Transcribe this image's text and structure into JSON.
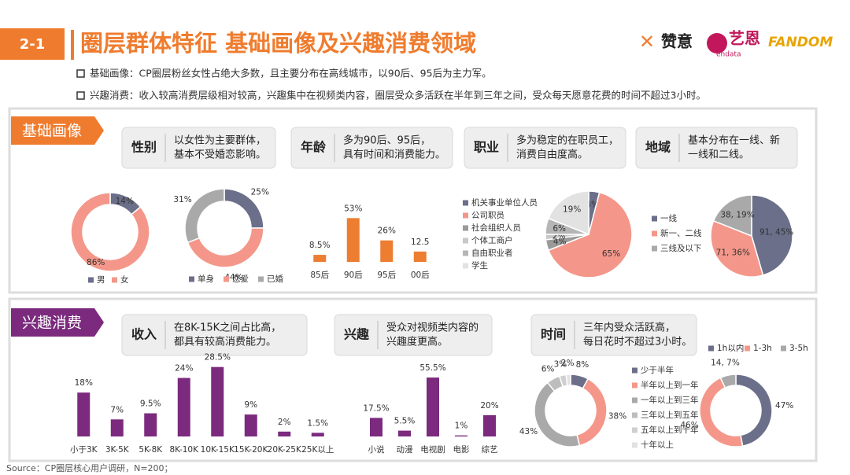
{
  "header": {
    "section": "2-1",
    "title": "圈层群体特征  基础画像及兴趣消费领域",
    "logo_zanyi": "赞意",
    "logo_yien": "艺恩",
    "logo_endata": "endata",
    "logo_fandom": "FANDOM"
  },
  "bullets": [
    "基础画像：CP圈层粉丝女性占绝大多数，且主要分布在高线城市，以90后、95后为主力军。",
    "兴趣消费：收入较高消费层级相对较高，兴趣集中在视频类内容，圈层受众多活跃在半年到三年之间，受众每天愿意花费的时间不超过3小时。"
  ],
  "panels": [
    {
      "tag": "基础画像",
      "cards": [
        {
          "label": "性别",
          "text": [
            "以女性为主要群体，",
            "基本不受婚恋影响。"
          ]
        },
        {
          "label": "年龄",
          "text": [
            "多为90后、95后，",
            "具有时间和消费能力。"
          ]
        },
        {
          "label": "职业",
          "text": [
            "多为稳定的在职员工，",
            "消费自由度高。"
          ]
        },
        {
          "label": "地域",
          "text": [
            "基本分布在一线、新",
            "一线和二线。"
          ]
        }
      ]
    },
    {
      "tag": "兴趣消费",
      "cards": [
        {
          "label": "收入",
          "text": [
            "在8K-15K之间占比高，",
            "都具有较高消费能力。"
          ]
        },
        {
          "label": "兴趣",
          "text": [
            "受众对视频类内容的",
            "兴趣度更高。"
          ]
        },
        {
          "label": "时间",
          "text": [
            "三年内受众活跃高，",
            "每日花时不超过3小时。"
          ]
        }
      ]
    }
  ],
  "charts": [
    {
      "type": "donut",
      "categories": [
        "男",
        "女"
      ],
      "values": [
        14,
        86
      ],
      "value_labels": [
        "14%",
        "86%"
      ],
      "colors": [
        "#6b6f8a",
        "#f4978a"
      ]
    },
    {
      "type": "donut",
      "categories": [
        "单身",
        "恋爱",
        "已婚"
      ],
      "values": [
        25,
        44,
        31
      ],
      "value_labels": [
        "25%",
        "44%",
        "31%"
      ],
      "colors": [
        "#6b6f8a",
        "#f4978a",
        "#a9a9a9"
      ]
    },
    {
      "type": "bar",
      "categories": [
        "85后",
        "90后",
        "95后",
        "00后"
      ],
      "values": [
        8.5,
        53,
        26,
        12.5
      ],
      "value_labels": [
        "8.5%",
        "53%",
        "26%",
        "12.5"
      ],
      "color": "#ed7d31"
    },
    {
      "type": "pie",
      "categories": [
        "机关事业单位人员",
        "公司职员",
        "社会组织人员",
        "个体工商户",
        "自由职业者",
        "学生"
      ],
      "values": [
        4,
        65,
        4,
        2,
        6,
        19
      ],
      "value_labels": [
        "4%",
        "65%",
        "4%",
        "2%",
        "6%",
        "19%"
      ],
      "colors": [
        "#6b6f8a",
        "#f4978a",
        "#9a9a9a",
        "#c8c8c8",
        "#b5b5b5",
        "#e2e2e2"
      ]
    },
    {
      "type": "pie",
      "categories": [
        "一线",
        "新一、二线",
        "三线及以下"
      ],
      "values": [
        91,
        71,
        38
      ],
      "value_labels": [
        "91, 45%",
        "71, 36%",
        "38, 19%"
      ],
      "colors": [
        "#6b6f8a",
        "#f4978a",
        "#a9a9a9"
      ]
    },
    {
      "type": "bar",
      "categories": [
        "小于3K",
        "3K-5K",
        "5K-8K",
        "8K-10K",
        "10K-15K",
        "15K-20K",
        "20K-25K",
        "25K以上"
      ],
      "values": [
        18,
        7,
        9.5,
        24,
        28.5,
        9,
        2,
        1.5
      ],
      "value_labels": [
        "18%",
        "7%",
        "9.5%",
        "24%",
        "28.5%",
        "9%",
        "2%",
        "1.5%"
      ],
      "color": "#7b2a7e"
    },
    {
      "type": "bar",
      "categories": [
        "小说",
        "动漫",
        "电视剧",
        "电影",
        "综艺"
      ],
      "values": [
        17.5,
        5.5,
        55.5,
        1,
        20
      ],
      "value_labels": [
        "17.5%",
        "5.5%",
        "55.5%",
        "1%",
        "20%"
      ],
      "color": "#7b2a7e"
    },
    {
      "type": "donut",
      "categories": [
        "少于半年",
        "半年以上到一年",
        "一年以上到三年",
        "三年以上到五年",
        "五年以上到十年",
        "十年以上"
      ],
      "values": [
        8,
        38,
        43,
        6,
        3,
        2
      ],
      "value_labels": [
        "8%",
        "38%",
        "43%",
        "6%",
        "3%",
        "2%"
      ],
      "colors": [
        "#6b6f8a",
        "#f4978a",
        "#a9a9a9",
        "#bdbdbd",
        "#cfcfcf",
        "#e2e2e2"
      ]
    },
    {
      "type": "donut",
      "categories": [
        "1h以内",
        "1-3h",
        "3-5h"
      ],
      "values": [
        47,
        46,
        7
      ],
      "value_labels": [
        "47%",
        "46%",
        "14, 7%"
      ],
      "colors": [
        "#6b6f8a",
        "#f4978a",
        "#a9a9a9"
      ]
    }
  ],
  "source": "Source：CP圈层核心用户调研，N=200；"
}
